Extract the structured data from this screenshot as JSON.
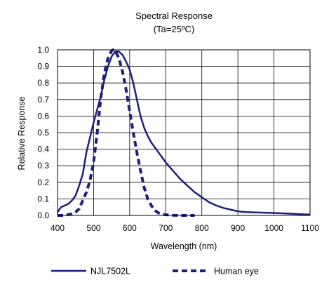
{
  "chart_data": {
    "type": "line",
    "title": "Spectral Response",
    "subtitle": "(Ta=25ºC)",
    "xlabel": "Wavelength (nm)",
    "ylabel": "Relative Response",
    "xlim": [
      400,
      1100
    ],
    "ylim": [
      0,
      1.0
    ],
    "x_ticks": [
      400,
      500,
      600,
      700,
      800,
      900,
      1000,
      1100
    ],
    "y_ticks": [
      0.0,
      0.1,
      0.2,
      0.3,
      0.4,
      0.5,
      0.6,
      0.7,
      0.8,
      0.9,
      1.0
    ],
    "x_tick_labels": [
      "400",
      "500",
      "600",
      "700",
      "800",
      "900",
      "1000",
      "1100"
    ],
    "y_tick_labels": [
      "0.0",
      "0.1",
      "0.2",
      "0.3",
      "0.4",
      "0.5",
      "0.6",
      "0.7",
      "0.8",
      "0.9",
      "1.0"
    ],
    "grid": true,
    "legend_position": "bottom",
    "series": [
      {
        "name": "NJL7502L",
        "style": "solid",
        "color": "#1f1f7a",
        "x": [
          400,
          410,
          420,
          430,
          440,
          450,
          460,
          470,
          480,
          490,
          500,
          510,
          520,
          530,
          540,
          550,
          560,
          570,
          580,
          590,
          600,
          610,
          620,
          630,
          640,
          650,
          660,
          670,
          680,
          690,
          700,
          720,
          740,
          760,
          780,
          800,
          820,
          840,
          860,
          880,
          900,
          920,
          950,
          1000,
          1050,
          1100
        ],
        "y": [
          0.02,
          0.05,
          0.06,
          0.07,
          0.09,
          0.12,
          0.18,
          0.25,
          0.38,
          0.47,
          0.56,
          0.64,
          0.72,
          0.82,
          0.9,
          0.96,
          0.99,
          0.99,
          0.97,
          0.93,
          0.88,
          0.8,
          0.7,
          0.6,
          0.53,
          0.48,
          0.44,
          0.41,
          0.38,
          0.35,
          0.32,
          0.27,
          0.22,
          0.18,
          0.14,
          0.11,
          0.08,
          0.06,
          0.045,
          0.035,
          0.025,
          0.02,
          0.018,
          0.015,
          0.01,
          0.005
        ]
      },
      {
        "name": "Human eye",
        "style": "dashed",
        "color": "#1f1f7a",
        "x": [
          400,
          420,
          440,
          450,
          460,
          470,
          480,
          490,
          500,
          510,
          520,
          530,
          540,
          550,
          555,
          560,
          570,
          580,
          590,
          600,
          610,
          620,
          630,
          640,
          650,
          660,
          670,
          680,
          690,
          700,
          720,
          750,
          780
        ],
        "y": [
          0.0,
          0.0,
          0.01,
          0.02,
          0.04,
          0.09,
          0.14,
          0.21,
          0.32,
          0.5,
          0.71,
          0.86,
          0.95,
          0.995,
          1.0,
          0.995,
          0.95,
          0.87,
          0.76,
          0.63,
          0.5,
          0.38,
          0.27,
          0.17,
          0.1,
          0.06,
          0.03,
          0.015,
          0.007,
          0.004,
          0.001,
          0.0,
          0.0
        ]
      }
    ]
  }
}
